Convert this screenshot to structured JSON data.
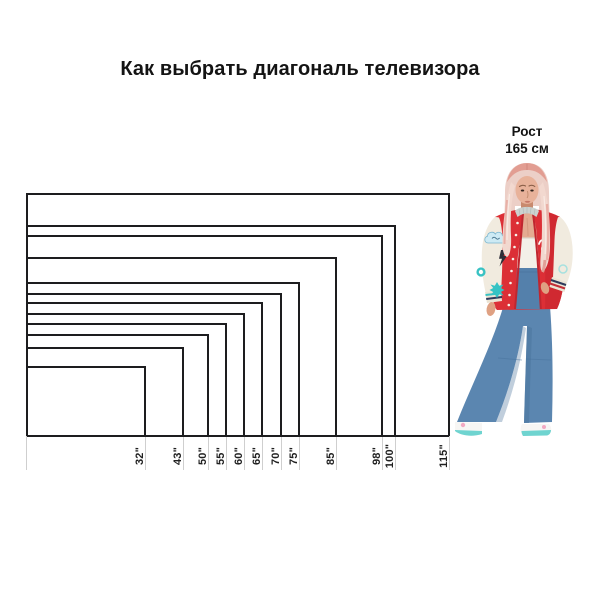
{
  "title": "Как выбрать диагональ телевизора",
  "person": {
    "line1": "Рост",
    "line2": "165 см",
    "height_cm": 165
  },
  "chart_data": {
    "type": "nested_rectangles_size_comparison",
    "title": "Как выбрать диагональ телевизора",
    "unit": "inches (TV diagonal)",
    "categories": [
      "32\"",
      "43\"",
      "50\"",
      "55\"",
      "60\"",
      "65\"",
      "70\"",
      "75\"",
      "85\"",
      "98\"",
      "100\"",
      "115\""
    ],
    "values": [
      32,
      43,
      50,
      55,
      60,
      65,
      70,
      75,
      85,
      98,
      100,
      115
    ],
    "aspect_ratio": "16:9",
    "reference_person": {
      "label": "Рост",
      "value": "165 см",
      "height_cm": 165
    },
    "layout_hint": "rectangles share a common bottom-left corner; each label is rotated 90° and placed below the right edge of its rectangle; a person (165 cm) stands to the right for scale"
  },
  "colors": {
    "background": "#ffffff",
    "rect_outline": "#1d1d1f",
    "tick_line": "#cfcfcf",
    "text": "#1a1a1a",
    "jacket_red": "#dc2f36",
    "sleeve_cream": "#f1ebdf",
    "denim_blue": "#5b86b0",
    "accent_teal": "#35c3c4",
    "hair_pink": "#eccfc7"
  }
}
